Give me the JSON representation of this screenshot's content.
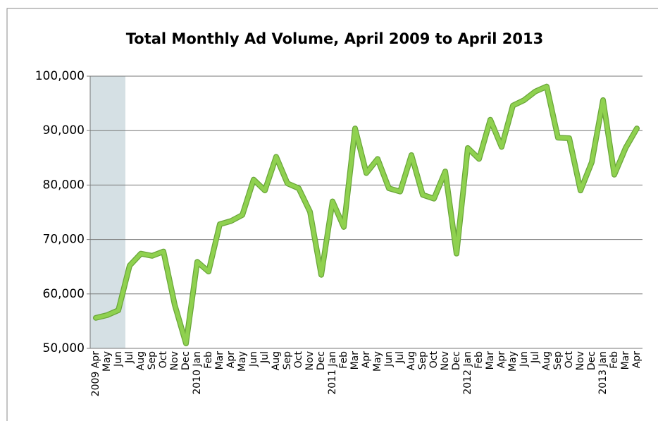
{
  "chart_data": {
    "type": "line",
    "title": "Total Monthly Ad Volume, April 2009 to April 2013",
    "categories": [
      "2009 Apr",
      "May",
      "Jun",
      "Jul",
      "Aug",
      "Sep",
      "Oct",
      "Nov",
      "Dec",
      "2010 Jan",
      "Feb",
      "Mar",
      "Apr",
      "May",
      "Jun",
      "Jul",
      "Aug",
      "Sep",
      "Oct",
      "Nov",
      "Dec",
      "2011 Jan",
      "Feb",
      "Mar",
      "Apr",
      "May",
      "Jun",
      "Jul",
      "Aug",
      "Sep",
      "Oct",
      "Nov",
      "Dec",
      "2012 Jan",
      "Feb",
      "Mar",
      "Apr",
      "May",
      "Jun",
      "Jul",
      "Aug",
      "Sep",
      "Oct",
      "Nov",
      "Dec",
      "2013 Jan",
      "Feb",
      "Mar",
      "Apr"
    ],
    "series": [
      {
        "color": "#8fd14f",
        "values": [
          55600,
          56100,
          57000,
          65200,
          67400,
          67000,
          67800,
          58000,
          50900,
          65900,
          64100,
          72800,
          73400,
          74500,
          81000,
          79000,
          85200,
          80300,
          79400,
          75100,
          63500,
          77000,
          72300,
          90400,
          82200,
          84800,
          79400,
          78800,
          85500,
          78200,
          77500,
          82500,
          67400,
          86800,
          84800,
          92000,
          87000,
          94600,
          95600,
          97200,
          98100,
          88700,
          88600,
          79000,
          84200,
          95600,
          81900,
          86800,
          90400
        ]
      }
    ],
    "ylim": [
      50000,
      100000
    ],
    "yticks": [
      {
        "value": 50000,
        "label": "50,000"
      },
      {
        "value": 60000,
        "label": "60,000"
      },
      {
        "value": 70000,
        "label": "70,000"
      },
      {
        "value": 80000,
        "label": "80,000"
      },
      {
        "value": 90000,
        "label": "90,000"
      },
      {
        "value": 100000,
        "label": "100,000"
      }
    ],
    "grid": true
  }
}
